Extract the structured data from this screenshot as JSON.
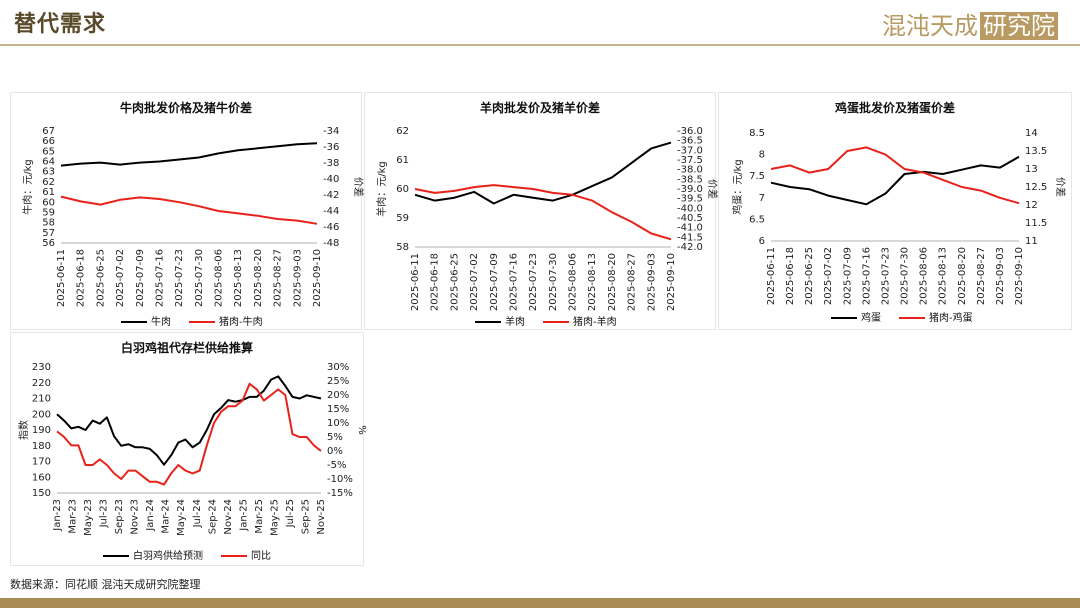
{
  "header": {
    "title": "替代需求",
    "logo_main": "混沌天成",
    "logo_box": "研究院"
  },
  "footer": {
    "source": "数据来源：同花顺 混沌天成研究院整理"
  },
  "colors": {
    "black": "#000000",
    "red": "#e8211a",
    "gold": "#b89a62"
  },
  "chart_data": [
    {
      "type": "line",
      "title": "牛肉批发价格及猪牛价差",
      "xticks": [
        "2025-06-11",
        "2025-06-18",
        "2025-06-25",
        "2025-07-02",
        "2025-07-09",
        "2025-07-16",
        "2025-07-23",
        "2025-07-30",
        "2025-08-06",
        "2025-08-13",
        "2025-08-20",
        "2025-08-27",
        "2025-09-03",
        "2025-09-10"
      ],
      "ylabel": "牛肉：元/kg",
      "y2label": "价差",
      "ylim": [
        56,
        67
      ],
      "y2lim": [
        -48,
        -34
      ],
      "yticks": [
        56,
        57,
        58,
        59,
        60,
        61,
        62,
        63,
        64,
        65,
        66,
        67
      ],
      "y2ticks": [
        -48,
        -46,
        -44,
        -42,
        -40,
        -38,
        -36,
        -34
      ],
      "series": [
        {
          "name": "牛肉",
          "axis": "left",
          "color": "#000000",
          "values": [
            63.6,
            63.8,
            63.9,
            63.7,
            63.9,
            64.0,
            64.2,
            64.4,
            64.8,
            65.1,
            65.3,
            65.5,
            65.7,
            65.8
          ]
        },
        {
          "name": "猪肉-牛肉",
          "axis": "right",
          "color": "#e8211a",
          "values": [
            -42.2,
            -42.8,
            -43.2,
            -42.6,
            -42.3,
            -42.5,
            -42.9,
            -43.4,
            -44.0,
            -44.3,
            -44.6,
            -45.0,
            -45.2,
            -45.6
          ]
        }
      ]
    },
    {
      "type": "line",
      "title": "羊肉批发价及猪羊价差",
      "xticks": [
        "2025-06-11",
        "2025-06-18",
        "2025-06-25",
        "2025-07-02",
        "2025-07-09",
        "2025-07-16",
        "2025-07-23",
        "2025-07-30",
        "2025-08-06",
        "2025-08-13",
        "2025-08-20",
        "2025-08-27",
        "2025-09-03",
        "2025-09-10"
      ],
      "ylabel": "羊肉：元/kg",
      "y2label": "价差",
      "ylim": [
        58,
        62
      ],
      "y2lim": [
        -42.0,
        -36.0
      ],
      "yticks": [
        58,
        59,
        60,
        61,
        62
      ],
      "y2ticks": [
        -42.0,
        -41.5,
        -41.0,
        -40.5,
        -40.0,
        -39.5,
        -39.0,
        -38.5,
        -38.0,
        -37.5,
        -37.0,
        -36.5,
        -36.0
      ],
      "series": [
        {
          "name": "羊肉",
          "axis": "left",
          "color": "#000000",
          "values": [
            59.8,
            59.6,
            59.7,
            59.9,
            59.5,
            59.8,
            59.7,
            59.6,
            59.8,
            60.1,
            60.4,
            60.9,
            61.4,
            61.6
          ]
        },
        {
          "name": "猪肉-羊肉",
          "axis": "right",
          "color": "#e8211a",
          "values": [
            -39.0,
            -39.2,
            -39.1,
            -38.9,
            -38.8,
            -38.9,
            -39.0,
            -39.2,
            -39.3,
            -39.6,
            -40.2,
            -40.7,
            -41.3,
            -41.6
          ]
        }
      ]
    },
    {
      "type": "line",
      "title": "鸡蛋批发价及猪蛋价差",
      "xticks": [
        "2025-06-11",
        "2025-06-18",
        "2025-06-25",
        "2025-07-02",
        "2025-07-09",
        "2025-07-16",
        "2025-07-23",
        "2025-07-30",
        "2025-08-06",
        "2025-08-13",
        "2025-08-20",
        "2025-08-27",
        "2025-09-03",
        "2025-09-10"
      ],
      "ylabel": "鸡蛋：元/kg",
      "y2label": "价差",
      "ylim": [
        6.0,
        8.5
      ],
      "y2lim": [
        11.0,
        14.0
      ],
      "yticks": [
        6.0,
        6.5,
        7.0,
        7.5,
        8.0,
        8.5
      ],
      "y2ticks": [
        11.0,
        11.5,
        12.0,
        12.5,
        13.0,
        13.5,
        14.0
      ],
      "series": [
        {
          "name": "鸡蛋",
          "axis": "left",
          "color": "#000000",
          "values": [
            7.35,
            7.25,
            7.2,
            7.05,
            6.95,
            6.85,
            7.1,
            7.55,
            7.6,
            7.55,
            7.65,
            7.75,
            7.7,
            7.95
          ]
        },
        {
          "name": "猪肉-鸡蛋",
          "axis": "right",
          "color": "#e8211a",
          "values": [
            13.0,
            13.1,
            12.9,
            13.0,
            13.5,
            13.6,
            13.4,
            13.0,
            12.9,
            12.7,
            12.5,
            12.4,
            12.2,
            12.05
          ]
        }
      ]
    },
    {
      "type": "line",
      "title": "白羽鸡祖代存栏供给推算",
      "xticks": [
        "Jan-23",
        "Mar-23",
        "May-23",
        "Jul-23",
        "Sep-23",
        "Nov-23",
        "Jan-24",
        "Mar-24",
        "May-24",
        "Jul-24",
        "Sep-24",
        "Nov-24",
        "Jan-25",
        "Mar-25",
        "May-25",
        "Jul-25",
        "Sep-25",
        "Nov-25"
      ],
      "ylabel": "指数",
      "y2label": "%",
      "ylim": [
        150,
        230
      ],
      "y2lim": [
        -15,
        30
      ],
      "yticks": [
        150,
        160,
        170,
        180,
        190,
        200,
        210,
        220,
        230
      ],
      "y2ticks": [
        "-15%",
        "-10%",
        "-5%",
        "0%",
        "5%",
        "10%",
        "15%",
        "20%",
        "25%",
        "30%"
      ],
      "series": [
        {
          "name": "白羽鸡供给预测",
          "axis": "left",
          "color": "#000000",
          "values": [
            200,
            196,
            191,
            192,
            190,
            196,
            194,
            198,
            186,
            180,
            181,
            179,
            179,
            178,
            174,
            168,
            174,
            182,
            184,
            179,
            182,
            190,
            200,
            204,
            209,
            208,
            209,
            211,
            211,
            215,
            222,
            224,
            218,
            211,
            210,
            212,
            211,
            210
          ]
        },
        {
          "name": "同比",
          "axis": "right",
          "color": "#e8211a",
          "values": [
            7,
            5,
            2,
            2,
            -5,
            -5,
            -3,
            -5,
            -8,
            -10,
            -7,
            -7,
            -9,
            -11,
            -11,
            -12,
            -8,
            -5,
            -7,
            -8,
            -7,
            2,
            10,
            14,
            16,
            16,
            18,
            24,
            22,
            18,
            20,
            22,
            20,
            6,
            5,
            5,
            2,
            0
          ]
        }
      ]
    }
  ]
}
